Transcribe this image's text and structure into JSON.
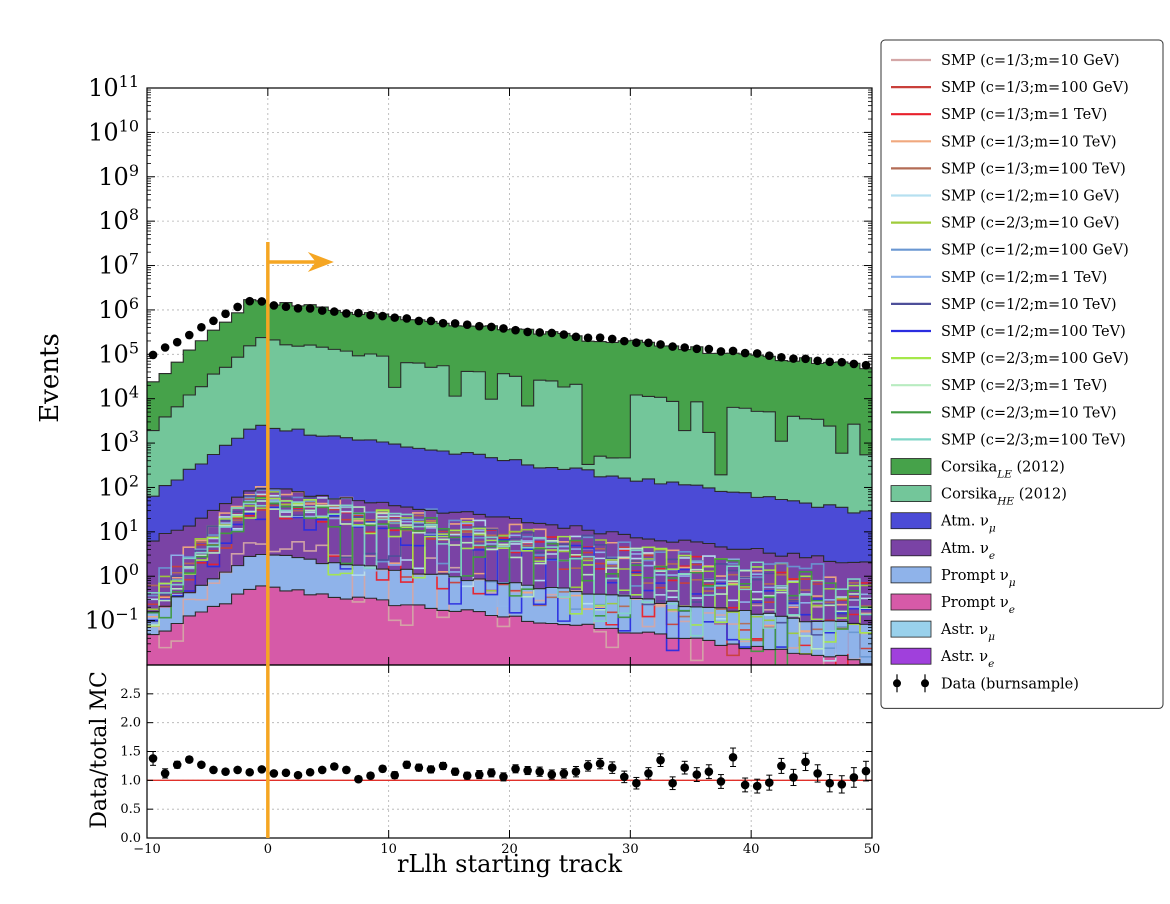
{
  "chart_data": [
    {
      "type": "histogram",
      "panel": "main",
      "xlabel": "",
      "ylabel": "Events",
      "yscale": "log",
      "ylim": [
        0.01,
        100000000000
      ],
      "xlim": [
        -10,
        50
      ],
      "grid": true,
      "ytick_labels": [
        {
          "exp": "11",
          "value": 100000000000
        },
        {
          "exp": "10",
          "value": 10000000000
        },
        {
          "exp": "9",
          "value": 1000000000
        },
        {
          "exp": "8",
          "value": 100000000
        },
        {
          "exp": "7",
          "value": 10000000
        },
        {
          "exp": "6",
          "value": 1000000
        },
        {
          "exp": "5",
          "value": 100000
        },
        {
          "exp": "4",
          "value": 10000
        },
        {
          "exp": "3",
          "value": 1000
        },
        {
          "exp": "2",
          "value": 100
        },
        {
          "exp": "1",
          "value": 10
        },
        {
          "exp": "0",
          "value": 1
        },
        {
          "exp": "−1",
          "value": 0.1
        }
      ],
      "bin_edges_range": [
        -10,
        50
      ],
      "bin_count": 60,
      "stacked_components": [
        {
          "name": "Prompt νe",
          "color": "#d65aa8",
          "profile": [
            [
              -10,
              0.04
            ],
            [
              -1,
              0.55
            ],
            [
              0,
              0.55
            ],
            [
              50,
              0.012
            ]
          ]
        },
        {
          "name": "Prompt νμ",
          "color": "#8fb3ea",
          "profile": [
            [
              -10,
              0.1
            ],
            [
              -1,
              2.5
            ],
            [
              0,
              2.5
            ],
            [
              50,
              0.06
            ]
          ]
        },
        {
          "name": "Atm. νe",
          "color": "#7a43a5",
          "profile": [
            [
              -10,
              5
            ],
            [
              -1,
              90
            ],
            [
              0,
              90
            ],
            [
              50,
              1.7
            ]
          ]
        },
        {
          "name": "Atm. νμ",
          "color": "#4b4bd6",
          "profile": [
            [
              -10,
              50
            ],
            [
              -1,
              2300
            ],
            [
              0,
              2300
            ],
            [
              50,
              25
            ]
          ]
        },
        {
          "name": "CorsikaHE (2012)",
          "color": "#73c69a",
          "profile": [
            [
              -10,
              1500
            ],
            [
              -1,
              220000
            ],
            [
              0,
              200000
            ],
            [
              50,
              2000
            ]
          ]
        },
        {
          "name": "CorsikaLE (2012)",
          "color": "#46a24a",
          "profile": [
            [
              -10,
              15000
            ],
            [
              -1,
              1900000
            ],
            [
              0,
              1300000
            ],
            [
              50,
              50000
            ]
          ]
        }
      ],
      "data_points": {
        "name": "Data (burnsample)",
        "profile": [
          [
            -10,
            80000
          ],
          [
            -1,
            1900000
          ],
          [
            0,
            1300000
          ],
          [
            50,
            55000
          ]
        ]
      },
      "cut": {
        "x": 0,
        "direction": "right",
        "color": "#f5a623"
      }
    },
    {
      "type": "scatter",
      "panel": "ratio",
      "xlabel": "rLlh starting track",
      "ylabel": "Data/total MC",
      "ylim": [
        0.0,
        3.0
      ],
      "xlim": [
        -10,
        50
      ],
      "xticks": [
        -10,
        0,
        10,
        20,
        30,
        40,
        50
      ],
      "xtick_labels": [
        "−10",
        "0",
        "10",
        "20",
        "30",
        "40",
        "50"
      ],
      "yticks": [
        0.0,
        0.5,
        1.0,
        1.5,
        2.0,
        2.5
      ],
      "ytick_labels": [
        "0.0",
        "0.5",
        "1.0",
        "1.5",
        "2.0",
        "2.5"
      ],
      "reference_line": 1.0,
      "x": [
        -9.5,
        -8.5,
        -7.5,
        -6.5,
        -5.5,
        -4.5,
        -3.5,
        -2.5,
        -1.5,
        -0.5,
        0.5,
        1.5,
        2.5,
        3.5,
        4.5,
        5.5,
        6.5,
        7.5,
        8.5,
        9.5,
        10.5,
        11.5,
        12.5,
        13.5,
        14.5,
        15.5,
        16.5,
        17.5,
        18.5,
        19.5,
        20.5,
        21.5,
        22.5,
        23.5,
        24.5,
        25.5,
        26.5,
        27.5,
        28.5,
        29.5,
        30.5,
        31.5,
        32.5,
        33.5,
        34.5,
        35.5,
        36.5,
        37.5,
        38.5,
        39.5,
        40.5,
        41.5,
        42.5,
        43.5,
        44.5,
        45.5,
        46.5,
        47.5,
        48.5,
        49.5
      ],
      "y": [
        1.38,
        1.12,
        1.27,
        1.36,
        1.27,
        1.18,
        1.15,
        1.18,
        1.14,
        1.19,
        1.12,
        1.13,
        1.09,
        1.14,
        1.18,
        1.24,
        1.18,
        1.02,
        1.08,
        1.2,
        1.09,
        1.27,
        1.22,
        1.19,
        1.25,
        1.15,
        1.08,
        1.1,
        1.13,
        1.06,
        1.2,
        1.17,
        1.15,
        1.1,
        1.12,
        1.15,
        1.25,
        1.29,
        1.22,
        1.06,
        0.95,
        1.12,
        1.35,
        0.95,
        1.22,
        1.1,
        1.15,
        0.98,
        1.4,
        0.92,
        0.9,
        0.96,
        1.25,
        1.05,
        1.32,
        1.12,
        0.95,
        0.93,
        1.05,
        1.16
      ],
      "yerr": [
        0.12,
        0.08,
        0.06,
        0.05,
        0.04,
        0.04,
        0.04,
        0.04,
        0.03,
        0.03,
        0.04,
        0.04,
        0.04,
        0.04,
        0.04,
        0.05,
        0.05,
        0.05,
        0.05,
        0.05,
        0.06,
        0.06,
        0.06,
        0.06,
        0.06,
        0.06,
        0.06,
        0.07,
        0.07,
        0.07,
        0.07,
        0.07,
        0.08,
        0.08,
        0.08,
        0.09,
        0.09,
        0.09,
        0.1,
        0.1,
        0.1,
        0.1,
        0.11,
        0.11,
        0.11,
        0.12,
        0.12,
        0.12,
        0.16,
        0.12,
        0.12,
        0.13,
        0.13,
        0.14,
        0.15,
        0.15,
        0.15,
        0.15,
        0.17,
        0.17
      ]
    }
  ],
  "legend": {
    "placement": "right-outside",
    "items": [
      {
        "type": "line",
        "color": "#d4a7a7",
        "label": "SMP (c=1/3;m=10 GeV)"
      },
      {
        "type": "line",
        "color": "#c9403a",
        "label": "SMP (c=1/3;m=100 GeV)"
      },
      {
        "type": "line",
        "color": "#e8212b",
        "label": "SMP (c=1/3;m=1 TeV)"
      },
      {
        "type": "line",
        "color": "#f0a87e",
        "label": "SMP (c=1/3;m=10 TeV)"
      },
      {
        "type": "line",
        "color": "#b36c55",
        "label": "SMP (c=1/3;m=100 TeV)"
      },
      {
        "type": "line",
        "color": "#b6e0f0",
        "label": "SMP (c=1/2;m=10 GeV)"
      },
      {
        "type": "line",
        "color": "#9fcb3a",
        "label": "SMP (c=2/3;m=10 GeV)"
      },
      {
        "type": "line",
        "color": "#6a97d2",
        "label": "SMP (c=1/2;m=100 GeV)"
      },
      {
        "type": "line",
        "color": "#8fb5ec",
        "label": "SMP (c=1/2;m=1 TeV)"
      },
      {
        "type": "line",
        "color": "#4d4f99",
        "label": "SMP (c=1/2;m=10 TeV)"
      },
      {
        "type": "line",
        "color": "#2a2de0",
        "label": "SMP (c=1/2;m=100 TeV)"
      },
      {
        "type": "line",
        "color": "#a5e84a",
        "label": "SMP (c=2/3;m=100 GeV)"
      },
      {
        "type": "line",
        "color": "#b8ecc0",
        "label": "SMP (c=2/3;m=1 TeV)"
      },
      {
        "type": "line",
        "color": "#3f9a3f",
        "label": "SMP (c=2/3;m=10 TeV)"
      },
      {
        "type": "line",
        "color": "#7fd6c7",
        "label": "SMP (c=2/3;m=100 TeV)"
      },
      {
        "type": "patch",
        "color": "#46a24a",
        "label": "Corsika",
        "sub": "LE",
        "suffix": " (2012)"
      },
      {
        "type": "patch",
        "color": "#73c69a",
        "label": "Corsika",
        "sub": "HE",
        "suffix": " (2012)"
      },
      {
        "type": "patch",
        "color": "#4b4bd6",
        "label": "Atm. ν",
        "sub": "μ",
        "suffix": ""
      },
      {
        "type": "patch",
        "color": "#7a43a5",
        "label": "Atm. ν",
        "sub": "e",
        "suffix": ""
      },
      {
        "type": "patch",
        "color": "#8fb3ea",
        "label": "Prompt ν",
        "sub": "μ",
        "suffix": ""
      },
      {
        "type": "patch",
        "color": "#d65aa8",
        "label": "Prompt ν",
        "sub": "e",
        "suffix": ""
      },
      {
        "type": "patch",
        "color": "#99d1ec",
        "label": "Astr. ν",
        "sub": "μ",
        "suffix": ""
      },
      {
        "type": "patch",
        "color": "#a040dc",
        "label": "Astr. ν",
        "sub": "e",
        "suffix": ""
      },
      {
        "type": "errorbar",
        "color": "#000000",
        "label": "Data (burnsample)",
        "sub": "",
        "suffix": ""
      }
    ]
  }
}
